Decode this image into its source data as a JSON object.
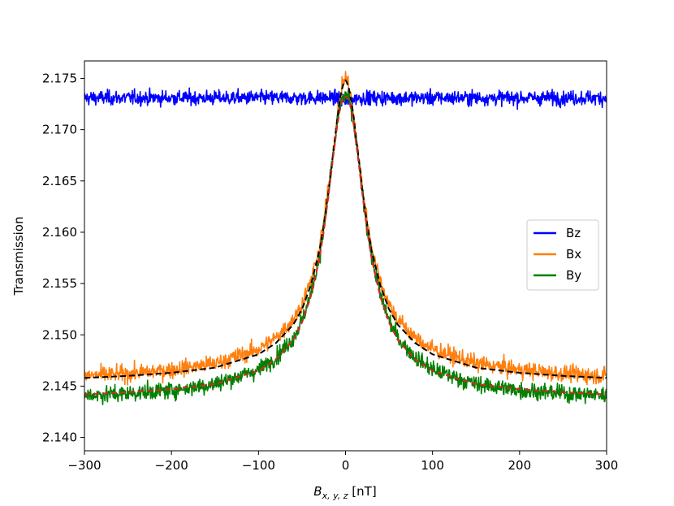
{
  "chart_data": {
    "type": "line",
    "title": "",
    "xlabel_main": "B",
    "xlabel_sub": "x, y, z",
    "xlabel_unit": " [nT]",
    "ylabel": "Transmission",
    "xlim": [
      -300,
      300
    ],
    "ylim": [
      2.1387,
      2.1767
    ],
    "grid": false,
    "legend_position": "center-right",
    "x_ticks": [
      -300,
      -200,
      -100,
      0,
      100,
      200,
      300
    ],
    "x_tick_labels": [
      "−300",
      "−200",
      "−100",
      "0",
      "100",
      "200",
      "300"
    ],
    "y_ticks": [
      2.14,
      2.145,
      2.15,
      2.155,
      2.16,
      2.165,
      2.17,
      2.175
    ],
    "y_tick_labels": [
      "2.140",
      "2.145",
      "2.150",
      "2.155",
      "2.160",
      "2.165",
      "2.170",
      "2.175"
    ],
    "x": [
      -300,
      -250,
      -200,
      -150,
      -100,
      -80,
      -60,
      -50,
      -40,
      -30,
      -25,
      -20,
      -15,
      -10,
      -7,
      -5,
      -3,
      -1,
      0,
      1,
      3,
      5,
      7,
      10,
      15,
      20,
      25,
      30,
      40,
      50,
      60,
      80,
      100,
      150,
      200,
      250,
      300
    ],
    "series": [
      {
        "name": "Bz",
        "color": "#0000ff",
        "noise": 0.00035,
        "values": [
          2.1731,
          2.1731,
          2.1731,
          2.1731,
          2.1731,
          2.1731,
          2.1731,
          2.1731,
          2.1731,
          2.1731,
          2.1731,
          2.1731,
          2.1731,
          2.173,
          2.1729,
          2.1729,
          2.1729,
          2.1728,
          2.1728,
          2.1728,
          2.1728,
          2.1729,
          2.1729,
          2.173,
          2.1731,
          2.1731,
          2.1731,
          2.1731,
          2.1731,
          2.1731,
          2.1731,
          2.1731,
          2.1731,
          2.1731,
          2.1731,
          2.1731,
          2.1731
        ]
      },
      {
        "name": "Bx",
        "color": "#ff7f0e",
        "noise": 0.0004,
        "values": [
          2.146,
          2.1462,
          2.1466,
          2.1472,
          2.1486,
          2.1497,
          2.1515,
          2.153,
          2.1552,
          2.1585,
          2.161,
          2.164,
          2.1674,
          2.1708,
          2.1727,
          2.1737,
          2.1745,
          2.175,
          2.1751,
          2.175,
          2.1745,
          2.1737,
          2.1727,
          2.1708,
          2.1674,
          2.164,
          2.161,
          2.1585,
          2.1552,
          2.153,
          2.1515,
          2.1497,
          2.1486,
          2.1472,
          2.1466,
          2.1462,
          2.146
        ]
      },
      {
        "name": "By",
        "color": "#008000",
        "noise": 0.0004,
        "values": [
          2.1441,
          2.1443,
          2.1446,
          2.1452,
          2.1466,
          2.1478,
          2.1497,
          2.1514,
          2.1539,
          2.1576,
          2.1603,
          2.1635,
          2.167,
          2.1702,
          2.1718,
          2.1726,
          2.1731,
          2.1733,
          2.1733,
          2.1733,
          2.1731,
          2.1726,
          2.1718,
          2.1702,
          2.167,
          2.1635,
          2.1603,
          2.1576,
          2.1539,
          2.1514,
          2.1497,
          2.1478,
          2.1466,
          2.1452,
          2.1446,
          2.1443,
          2.1441
        ]
      }
    ],
    "fits": [
      {
        "color": "#000000",
        "values": [
          2.1458,
          2.146,
          2.1463,
          2.1468,
          2.1481,
          2.1492,
          2.151,
          2.1525,
          2.1548,
          2.1582,
          2.1607,
          2.1637,
          2.1672,
          2.1707,
          2.1727,
          2.1736,
          2.1743,
          2.1747,
          2.1748,
          2.1747,
          2.1743,
          2.1736,
          2.1727,
          2.1707,
          2.1672,
          2.1637,
          2.1607,
          2.1582,
          2.1548,
          2.1525,
          2.151,
          2.1492,
          2.1481,
          2.1468,
          2.1463,
          2.146,
          2.1458
        ]
      },
      {
        "color": "#d62728",
        "values": [
          2.1442,
          2.1444,
          2.1447,
          2.1452,
          2.1465,
          2.1476,
          2.1495,
          2.1512,
          2.1537,
          2.1574,
          2.1601,
          2.1633,
          2.1668,
          2.1701,
          2.1717,
          2.1725,
          2.173,
          2.1732,
          2.1732,
          2.1732,
          2.173,
          2.1725,
          2.1717,
          2.1701,
          2.1668,
          2.1633,
          2.1601,
          2.1574,
          2.1537,
          2.1512,
          2.1495,
          2.1476,
          2.1465,
          2.1452,
          2.1447,
          2.1444,
          2.1442
        ]
      }
    ]
  }
}
